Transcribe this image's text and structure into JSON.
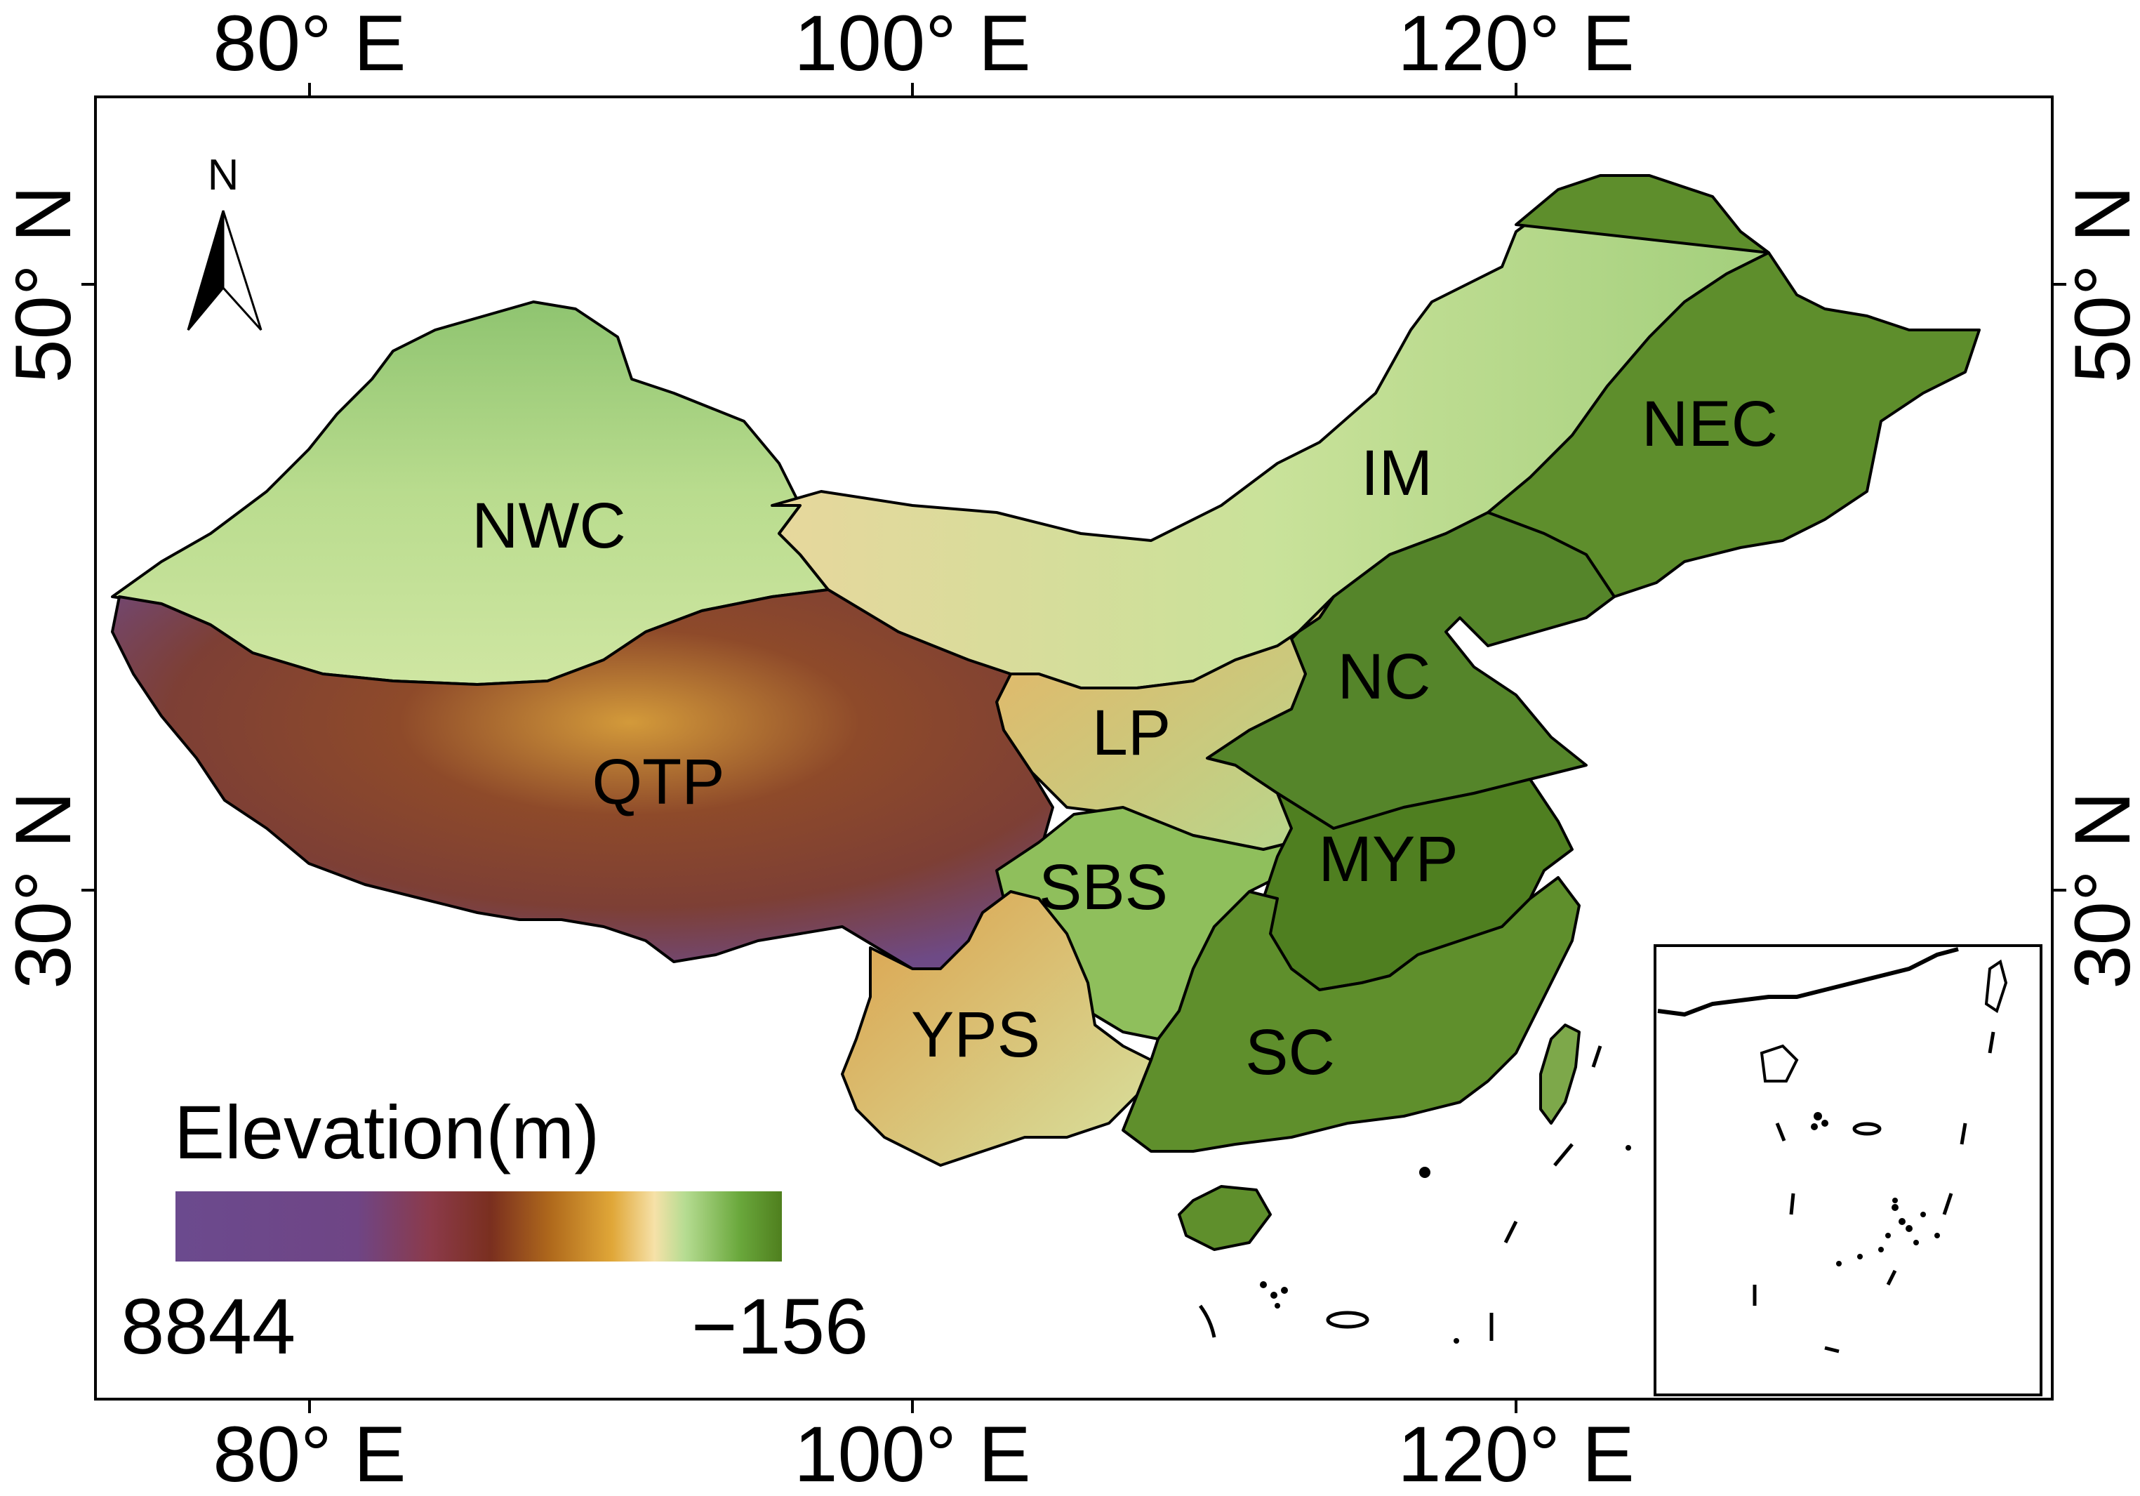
{
  "axes": {
    "top_ticks": [
      "80° E",
      "100° E",
      "120° E"
    ],
    "bottom_ticks": [
      "80° E",
      "100° E",
      "120° E"
    ],
    "left_ticks": [
      "50° N",
      "30° N"
    ],
    "right_ticks": [
      "50° N",
      "30° N"
    ]
  },
  "north_arrow": {
    "letter": "N"
  },
  "regions": [
    {
      "code": "NWC"
    },
    {
      "code": "IM"
    },
    {
      "code": "NEC"
    },
    {
      "code": "NC"
    },
    {
      "code": "LP"
    },
    {
      "code": "QTP"
    },
    {
      "code": "SBS"
    },
    {
      "code": "MYP"
    },
    {
      "code": "YPS"
    },
    {
      "code": "SC"
    }
  ],
  "legend": {
    "title": "Elevation(m)",
    "max_label": "8844",
    "min_label": "−156",
    "max_value": 8844,
    "min_value": -156,
    "colors": [
      "#6b4a8e",
      "#6f4585",
      "#8b3a4a",
      "#7a2f1f",
      "#a0561a",
      "#d89a2a",
      "#f3d9a0",
      "#a8d68a",
      "#6aa83c",
      "#4f7f1e"
    ]
  },
  "colors": {
    "high_plateau": "#7b4a7a",
    "plateau_brown": "#8b3f28",
    "mid_orange": "#d59a3a",
    "light_tan": "#e8d49a",
    "light_green": "#a8d07e",
    "lowland_green": "#5f8f2c",
    "frame": "#000000"
  }
}
